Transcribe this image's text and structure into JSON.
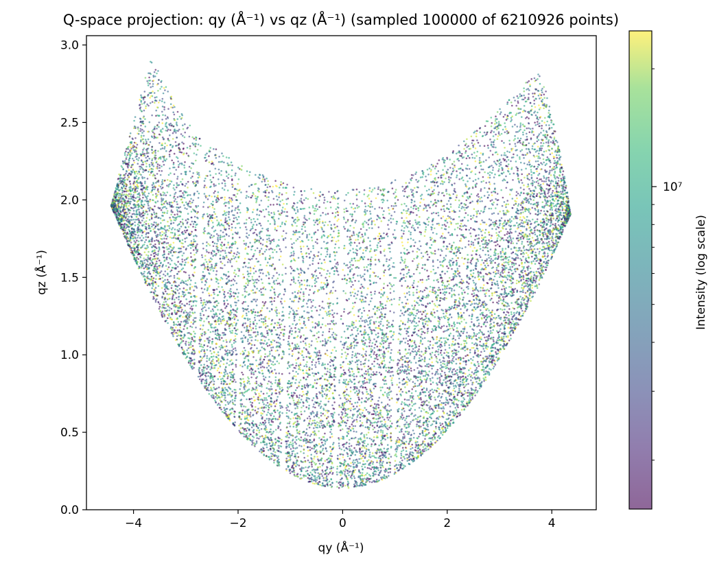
{
  "chart_data": {
    "type": "scatter",
    "title": "Q-space projection: qy (Å⁻¹) vs qz (Å⁻¹) (sampled 100000 of 6210926 points)",
    "xlabel": "qy (Å⁻¹)",
    "ylabel": "qz (Å⁻¹)",
    "xlim": [
      -4.9,
      4.85
    ],
    "ylim": [
      0.0,
      3.06
    ],
    "xticks": [
      -4,
      -2,
      0,
      2,
      4
    ],
    "xtick_labels": [
      "−4",
      "−2",
      "0",
      "2",
      "4"
    ],
    "yticks": [
      0.0,
      0.5,
      1.0,
      1.5,
      2.0,
      2.5,
      3.0
    ],
    "ytick_labels": [
      "0.0",
      "0.5",
      "1.0",
      "1.5",
      "2.0",
      "2.5",
      "3.0"
    ],
    "grid": false,
    "colormap": "viridis",
    "alpha": 0.6,
    "sampled_points": 100000,
    "total_points": 6210926,
    "colorbar": {
      "label": "Intensity (log scale)",
      "scale": "log",
      "tick_label": "10⁷",
      "tick_value": 10000000,
      "range": [
        1500000,
        25000000
      ]
    },
    "region": {
      "description_points": "lower boundary qz ≈ 0.14 + 0.093·qy² for qy in [-4.45, 4.38]; upper boundary below",
      "upper_boundary": [
        [
          -4.45,
          1.93
        ],
        [
          -4.25,
          2.2
        ],
        [
          -4.0,
          2.5
        ],
        [
          -3.75,
          2.82
        ],
        [
          -3.68,
          2.9
        ],
        [
          -3.5,
          2.82
        ],
        [
          -3.2,
          2.62
        ],
        [
          -2.8,
          2.42
        ],
        [
          -2.3,
          2.3
        ],
        [
          -1.8,
          2.2
        ],
        [
          -1.2,
          2.12
        ],
        [
          -0.6,
          2.07
        ],
        [
          0.0,
          2.06
        ],
        [
          0.6,
          2.08
        ],
        [
          1.2,
          2.15
        ],
        [
          1.8,
          2.25
        ],
        [
          2.4,
          2.4
        ],
        [
          3.0,
          2.6
        ],
        [
          3.5,
          2.76
        ],
        [
          3.72,
          2.85
        ],
        [
          3.9,
          2.7
        ],
        [
          4.1,
          2.4
        ],
        [
          4.3,
          2.05
        ],
        [
          4.38,
          1.85
        ]
      ],
      "gaps_qy": [
        -2.85,
        -2.05,
        -1.15,
        -0.15,
        0.95
      ]
    }
  }
}
